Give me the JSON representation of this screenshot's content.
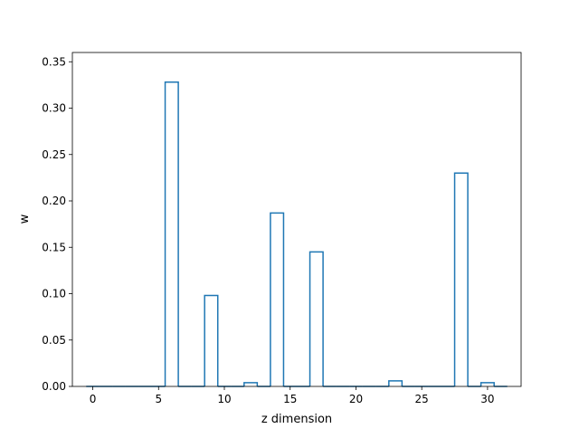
{
  "chart_data": {
    "type": "bar",
    "style": "step-outline",
    "xlabel": "z dimension",
    "ylabel": "w",
    "xlim": [
      -1.55,
      32.55
    ],
    "ylim": [
      0,
      0.36
    ],
    "x_ticks": [
      0,
      5,
      10,
      15,
      20,
      25,
      30
    ],
    "y_ticks": [
      "0.00",
      "0.05",
      "0.10",
      "0.15",
      "0.20",
      "0.25",
      "0.30",
      "0.35"
    ],
    "grid": false,
    "legend": "none",
    "color": "#1f77b4",
    "x": [
      0,
      1,
      2,
      3,
      4,
      5,
      6,
      7,
      8,
      9,
      10,
      11,
      12,
      13,
      14,
      15,
      16,
      17,
      18,
      19,
      20,
      21,
      22,
      23,
      24,
      25,
      26,
      27,
      28,
      29,
      30,
      31
    ],
    "values": [
      0,
      0,
      0,
      0,
      0,
      0,
      0.328,
      0,
      0,
      0.098,
      0,
      0,
      0.004,
      0,
      0.187,
      0,
      0,
      0.145,
      0,
      0,
      0,
      0,
      0,
      0.006,
      0,
      0,
      0,
      0,
      0.23,
      0,
      0.004,
      0
    ]
  }
}
